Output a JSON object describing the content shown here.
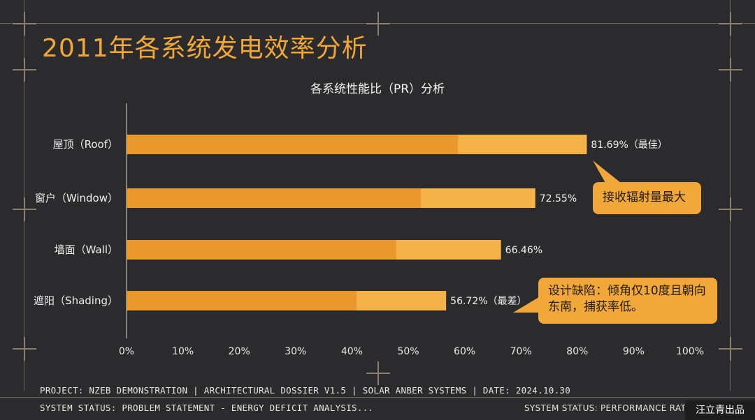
{
  "title": "2011年各系统发电效率分析",
  "chart_data": {
    "type": "bar",
    "orientation": "horizontal",
    "title": "各系统性能比（PR）分析",
    "categories": [
      "屋顶（Roof）",
      "窗户（Window）",
      "墙面（Wall）",
      "遮阳（Shading）"
    ],
    "values": [
      81.69,
      72.55,
      66.46,
      56.72
    ],
    "value_labels": [
      "81.69%（最佳）",
      "72.55%",
      "66.46%",
      "56.72%（最差）"
    ],
    "xlim": [
      0,
      100
    ],
    "x_ticks": [
      "0%",
      "10%",
      "20%",
      "30%",
      "40%",
      "50%",
      "60%",
      "70%",
      "80%",
      "90%",
      "100%"
    ],
    "grid": false,
    "colors": {
      "bar_dark": "#e9982c",
      "bar_light": "#f5b24a"
    }
  },
  "callouts": {
    "roof": "接收辐射量最大",
    "shading": "设计缺陷：倾角仅10度且朝向东南，捕获率低。"
  },
  "footer": {
    "line1": "PROJECT: NZEB DEMONSTRATION | ARCHITECTURAL DOSSIER V1.5 | SOLAR ANBER SYSTEMS | DATE: 2024.10.30",
    "line2": "SYSTEM STATUS: PROBLEM STATEMENT - ENERGY DEFICIT ANALYSIS...",
    "right": "SYSTEM STATUS: PERFORMANCE RATIO A"
  },
  "watermark": "汪立青出品",
  "colors": {
    "accent": "#f2a73a",
    "background": "#2b2b2d"
  }
}
